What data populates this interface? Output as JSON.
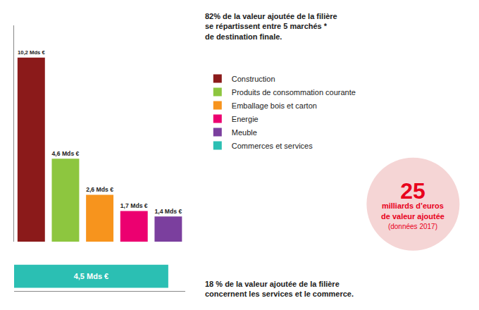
{
  "chart_data": [
    {
      "type": "bar",
      "categories": [
        "Construction",
        "Produits de consommation courante",
        "Emballage bois et carton",
        "Energie",
        "Meuble"
      ],
      "values": [
        10.2,
        4.6,
        2.6,
        1.7,
        1.4
      ],
      "value_labels": [
        "10,2 Mds €",
        "4,6 Mds €",
        "2,6 Mds €",
        "1,7 Mds €",
        "1,4 Mds €"
      ],
      "colors": [
        "#8B1A1A",
        "#8DC63F",
        "#F7941D",
        "#EC0070",
        "#7B3F9E"
      ],
      "data_labels": true,
      "tick_labels": false,
      "grid": false,
      "legend": "right",
      "ylim": [
        0,
        12
      ],
      "annotations": [
        {
          "text": [
            "82% de la valeur ajoutée de la filière",
            "se répartissent entre 5 marchés *",
            "de destination finale."
          ]
        },
        {
          "text": [
            "18 % de la valeur ajoutée de la filière",
            "concernent les services et le commerce."
          ]
        },
        {
          "text": [
            "25",
            "milliards d’euros",
            "de valeur ajoutée",
            "(données 2017)"
          ],
          "color": "#E8001C",
          "background": "#F5D5D5"
        }
      ]
    },
    {
      "type": "bar",
      "orientation": "horizontal",
      "categories": [
        "Commerces et services"
      ],
      "values": [
        4.5
      ],
      "value_labels": [
        "4,5 Mds €"
      ],
      "colors": [
        "#2BBFB3"
      ],
      "data_labels": true,
      "tick_labels": false,
      "grid": false,
      "legend": "right",
      "xlim": [
        0,
        5
      ]
    }
  ]
}
